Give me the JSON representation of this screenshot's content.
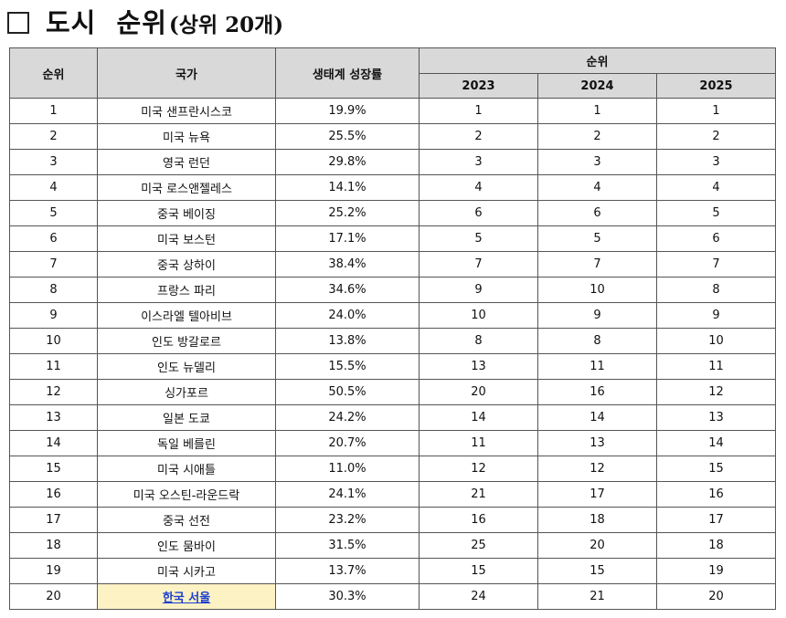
{
  "title": {
    "main": "도시  순위",
    "sub": "(상위 20개)"
  },
  "table": {
    "headers": {
      "rank": "순위",
      "city": "국가",
      "growth": "생태계 성장률",
      "rank_group": "순위",
      "years": [
        "2023",
        "2024",
        "2025"
      ]
    },
    "rows": [
      {
        "rank": "1",
        "city": "미국 샌프란시스코",
        "growth": "19.9%",
        "r2023": "1",
        "r2024": "1",
        "r2025": "1"
      },
      {
        "rank": "2",
        "city": "미국 뉴욕",
        "growth": "25.5%",
        "r2023": "2",
        "r2024": "2",
        "r2025": "2"
      },
      {
        "rank": "3",
        "city": "영국 런던",
        "growth": "29.8%",
        "r2023": "3",
        "r2024": "3",
        "r2025": "3"
      },
      {
        "rank": "4",
        "city": "미국 로스앤젤레스",
        "growth": "14.1%",
        "r2023": "4",
        "r2024": "4",
        "r2025": "4"
      },
      {
        "rank": "5",
        "city": "중국 베이징",
        "growth": "25.2%",
        "r2023": "6",
        "r2024": "6",
        "r2025": "5"
      },
      {
        "rank": "6",
        "city": "미국 보스턴",
        "growth": "17.1%",
        "r2023": "5",
        "r2024": "5",
        "r2025": "6"
      },
      {
        "rank": "7",
        "city": "중국 상하이",
        "growth": "38.4%",
        "r2023": "7",
        "r2024": "7",
        "r2025": "7"
      },
      {
        "rank": "8",
        "city": "프랑스 파리",
        "growth": "34.6%",
        "r2023": "9",
        "r2024": "10",
        "r2025": "8"
      },
      {
        "rank": "9",
        "city": "이스라엘 텔아비브",
        "growth": "24.0%",
        "r2023": "10",
        "r2024": "9",
        "r2025": "9"
      },
      {
        "rank": "10",
        "city": "인도 방갈로르",
        "growth": "13.8%",
        "r2023": "8",
        "r2024": "8",
        "r2025": "10"
      },
      {
        "rank": "11",
        "city": "인도 뉴델리",
        "growth": "15.5%",
        "r2023": "13",
        "r2024": "11",
        "r2025": "11"
      },
      {
        "rank": "12",
        "city": "싱가포르",
        "growth": "50.5%",
        "r2023": "20",
        "r2024": "16",
        "r2025": "12"
      },
      {
        "rank": "13",
        "city": "일본 도쿄",
        "growth": "24.2%",
        "r2023": "14",
        "r2024": "14",
        "r2025": "13"
      },
      {
        "rank": "14",
        "city": "독일 베를린",
        "growth": "20.7%",
        "r2023": "11",
        "r2024": "13",
        "r2025": "14"
      },
      {
        "rank": "15",
        "city": "미국 시애틀",
        "growth": "11.0%",
        "r2023": "12",
        "r2024": "12",
        "r2025": "15"
      },
      {
        "rank": "16",
        "city": "미국 오스틴-라운드락",
        "growth": "24.1%",
        "r2023": "21",
        "r2024": "17",
        "r2025": "16"
      },
      {
        "rank": "17",
        "city": "중국 선전",
        "growth": "23.2%",
        "r2023": "16",
        "r2024": "18",
        "r2025": "17"
      },
      {
        "rank": "18",
        "city": "인도 뭄바이",
        "growth": "31.5%",
        "r2023": "25",
        "r2024": "20",
        "r2025": "18"
      },
      {
        "rank": "19",
        "city": "미국 시카고",
        "growth": "13.7%",
        "r2023": "15",
        "r2024": "15",
        "r2025": "19"
      },
      {
        "rank": "20",
        "city": "한국 서울",
        "growth": "30.3%",
        "r2023": "24",
        "r2024": "21",
        "r2025": "20",
        "highlight": true
      }
    ]
  },
  "colors": {
    "header_bg": "#d9d9d9",
    "highlight_bg": "#fdf2c4",
    "link": "#1a3fd0",
    "border": "#555555"
  }
}
